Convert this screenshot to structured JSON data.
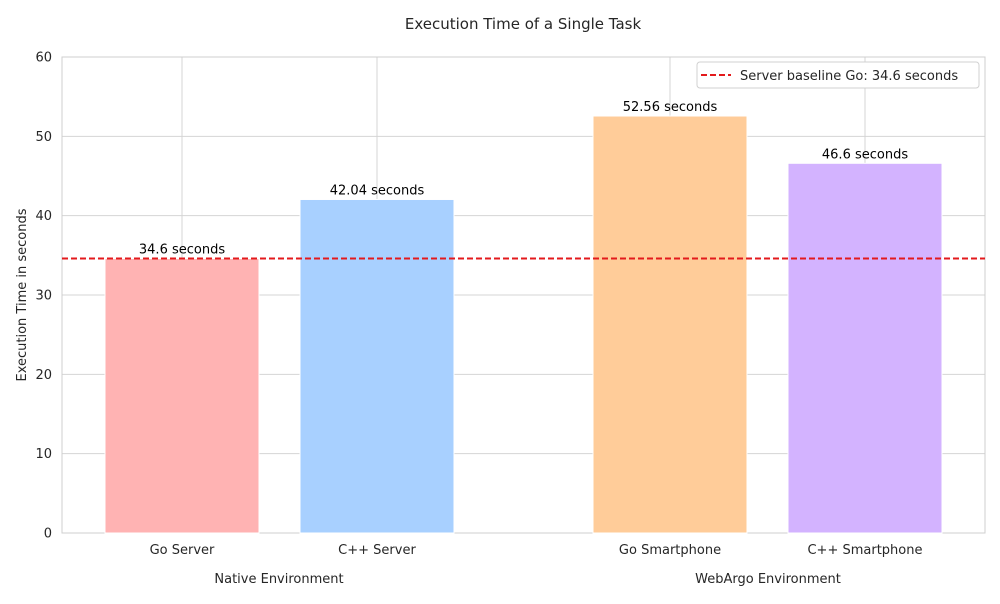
{
  "chart_data": {
    "type": "bar",
    "title": "Execution Time of a Single Task",
    "ylabel": "Execution Time in seconds",
    "xlabel": "",
    "ylim": [
      0,
      60
    ],
    "yticks": [
      0,
      10,
      20,
      30,
      40,
      50,
      60
    ],
    "grid": true,
    "legend_position": "top-right",
    "categories": [
      "Go Server",
      "C++ Server",
      "Go Smartphone",
      "C++ Smartphone"
    ],
    "values": [
      34.6,
      42.04,
      52.56,
      46.6
    ],
    "value_labels": [
      "34.6 seconds",
      "42.04 seconds",
      "52.56 seconds",
      "46.6 seconds"
    ],
    "colors": [
      "#ffb3b3",
      "#a8d0ff",
      "#ffcc99",
      "#d3b3ff"
    ],
    "groups": [
      {
        "label": "Native Environment",
        "members": [
          "Go Server",
          "C++ Server"
        ]
      },
      {
        "label": "WebArgo Environment",
        "members": [
          "Go Smartphone",
          "C++ Smartphone"
        ]
      }
    ],
    "baseline": {
      "value": 34.6,
      "label": "Server baseline Go: 34.6 seconds",
      "color": "#e31a1c",
      "style": "dashed"
    }
  }
}
